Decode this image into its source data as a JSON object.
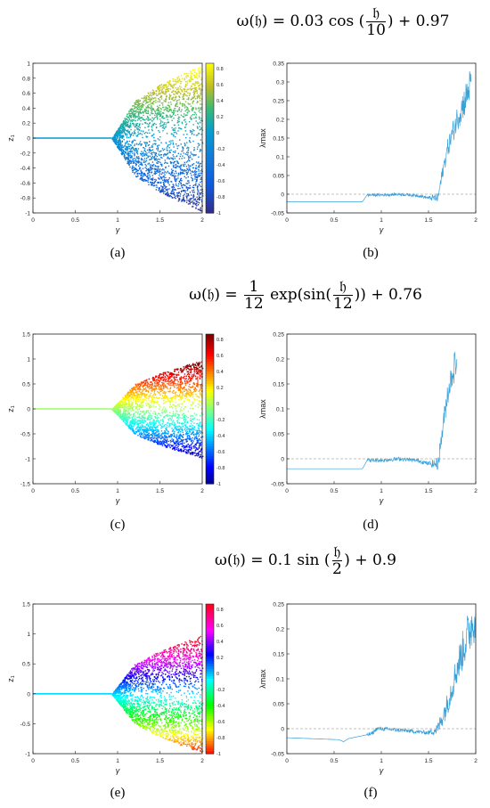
{
  "rows": [
    {
      "equation": {
        "lhs": "ω(𝔥) = 0.03 cos",
        "num": "𝔥",
        "den": "10",
        "rhs": "+ 0.97",
        "open": "(",
        "close": ")"
      },
      "left": {
        "caption": "(a)",
        "ylabel": "z₁",
        "xlabel": "γ",
        "ylim": [
          -1,
          1
        ],
        "yticks": [
          "1",
          "0.8",
          "0.6",
          "0.4",
          "0.2",
          "0",
          "-0.2",
          "-0.4",
          "-0.6",
          "-0.8",
          "-1"
        ],
        "xticks": [
          "0",
          "0.5",
          "1",
          "1.5",
          "2"
        ],
        "colorbar_ticks": [
          "0.8",
          "0.6",
          "0.4",
          "0.2",
          "0",
          "-0.2",
          "-0.4",
          "-0.6",
          "-0.8",
          "-1"
        ],
        "colormap": "parula"
      },
      "right": {
        "caption": "(b)",
        "ylabel": "λmax",
        "xlabel": "γ",
        "ylim": [
          -0.05,
          0.35
        ],
        "yticks": [
          "0.35",
          "0.3",
          "0.25",
          "0.2",
          "0.15",
          "0.1",
          "0.05",
          "0",
          "-0.05"
        ],
        "xticks": [
          "0",
          "0.5",
          "1",
          "1.5",
          "2"
        ]
      }
    },
    {
      "equation": {
        "lhs": "ω(𝔥) =",
        "num": "1",
        "den": "12",
        "mid": "exp(sin(",
        "num2": "𝔥",
        "den2": "12",
        "rhs": ")) + 0.76"
      },
      "left": {
        "caption": "(c)",
        "ylabel": "z₁",
        "xlabel": "γ",
        "ylim": [
          -1.5,
          1.5
        ],
        "yticks": [
          "1.5",
          "1",
          "0.5",
          "0",
          "-0.5",
          "-1",
          "-1.5"
        ],
        "xticks": [
          "0",
          "0.5",
          "1",
          "1.5",
          "2"
        ],
        "colorbar_ticks": [
          "0.8",
          "0.6",
          "0.4",
          "0.2",
          "0",
          "-0.2",
          "-0.4",
          "-0.6",
          "-0.8",
          "-1"
        ],
        "colormap": "jet"
      },
      "right": {
        "caption": "(d)",
        "ylabel": "λmax",
        "xlabel": "γ",
        "ylim": [
          -0.05,
          0.25
        ],
        "yticks": [
          "0.25",
          "0.2",
          "0.15",
          "0.1",
          "0.05",
          "0",
          "-0.05"
        ],
        "xticks": [
          "0",
          "0.5",
          "1",
          "1.5",
          "2"
        ]
      }
    },
    {
      "equation": {
        "lhs": "ω(𝔥) = 0.1 sin",
        "num": "𝔥",
        "den": "2",
        "rhs": "+ 0.9",
        "open": "(",
        "close": ")"
      },
      "left": {
        "caption": "(e)",
        "ylabel": "z₁",
        "xlabel": "γ",
        "ylim": [
          -1,
          1.5
        ],
        "yticks": [
          "1.5",
          "1",
          "0.5",
          "0",
          "-0.5",
          "-1"
        ],
        "xticks": [
          "0",
          "0.5",
          "1",
          "1.5",
          "2"
        ],
        "colorbar_ticks": [
          "0.8",
          "0.6",
          "0.4",
          "0.2",
          "0",
          "-0.2",
          "-0.4",
          "-0.6",
          "-0.8",
          "-1"
        ],
        "colormap": "hsv"
      },
      "right": {
        "caption": "(f)",
        "ylabel": "λmax",
        "xlabel": "γ",
        "ylim": [
          -0.05,
          0.25
        ],
        "yticks": [
          "0.25",
          "0.2",
          "0.15",
          "0.1",
          "0.05",
          "0",
          "-0.05"
        ],
        "xticks": [
          "0",
          "0.5",
          "1",
          "1.5",
          "2"
        ]
      }
    }
  ],
  "chart_data": [
    {
      "type": "scatter",
      "title": "",
      "xlabel": "γ",
      "ylabel": "z₁",
      "xlim": [
        0,
        2
      ],
      "ylim": [
        -1,
        1
      ],
      "bifurcation_gamma": 0.93,
      "envelope": {
        "x": [
          0.93,
          1.2,
          1.5,
          1.8,
          2.0
        ],
        "y_max": [
          0,
          0.5,
          0.72,
          0.88,
          0.98
        ]
      },
      "colorbar_range": [
        -1,
        0.9
      ]
    },
    {
      "type": "line",
      "title": "",
      "xlabel": "γ",
      "ylabel": "λmax",
      "xlim": [
        0,
        2
      ],
      "ylim": [
        -0.05,
        0.35
      ],
      "reference_line": 0,
      "x": [
        0,
        0.8,
        0.85,
        1.0,
        1.2,
        1.4,
        1.5,
        1.6,
        1.65,
        1.7,
        1.8,
        1.9,
        1.95
      ],
      "values": [
        -0.02,
        -0.02,
        -0.002,
        -0.002,
        0.0,
        -0.004,
        -0.01,
        -0.01,
        0.06,
        0.12,
        0.2,
        0.26,
        0.3
      ]
    },
    {
      "type": "scatter",
      "title": "",
      "xlabel": "γ",
      "ylabel": "z₁",
      "xlim": [
        0,
        2
      ],
      "ylim": [
        -1.5,
        1.5
      ],
      "bifurcation_gamma": 0.93,
      "envelope": {
        "x": [
          0.93,
          1.2,
          1.5,
          1.8,
          2.0
        ],
        "y_max": [
          0,
          0.5,
          0.72,
          0.88,
          0.98
        ]
      },
      "colorbar_range": [
        -1,
        0.9
      ]
    },
    {
      "type": "line",
      "title": "",
      "xlabel": "γ",
      "ylabel": "λmax",
      "xlim": [
        0,
        2
      ],
      "ylim": [
        -0.05,
        0.25
      ],
      "reference_line": 0,
      "x": [
        0,
        0.8,
        0.85,
        1.0,
        1.2,
        1.4,
        1.5,
        1.6,
        1.65,
        1.7,
        1.75,
        1.8
      ],
      "values": [
        -0.02,
        -0.02,
        -0.003,
        -0.003,
        0.0,
        -0.004,
        -0.01,
        -0.01,
        0.06,
        0.13,
        0.17,
        0.2
      ]
    },
    {
      "type": "scatter",
      "title": "",
      "xlabel": "γ",
      "ylabel": "z₁",
      "xlim": [
        0,
        2
      ],
      "ylim": [
        -1,
        1.5
      ],
      "bifurcation_gamma": 0.93,
      "envelope": {
        "x": [
          0.93,
          1.2,
          1.5,
          1.8,
          2.0
        ],
        "y_max": [
          0,
          0.5,
          0.72,
          0.88,
          0.98
        ]
      },
      "colorbar_range": [
        -1,
        0.9
      ]
    },
    {
      "type": "line",
      "title": "",
      "xlabel": "γ",
      "ylabel": "λmax",
      "xlim": [
        0,
        2
      ],
      "ylim": [
        -0.05,
        0.25
      ],
      "reference_line": 0,
      "x": [
        0,
        0.55,
        0.6,
        0.65,
        0.9,
        0.95,
        1.0,
        1.2,
        1.5,
        1.6,
        1.7,
        1.8,
        1.9,
        2.0
      ],
      "values": [
        -0.018,
        -0.022,
        -0.026,
        -0.02,
        -0.01,
        0.0,
        0.0,
        -0.003,
        -0.008,
        0.0,
        0.05,
        0.12,
        0.18,
        0.23
      ]
    }
  ]
}
